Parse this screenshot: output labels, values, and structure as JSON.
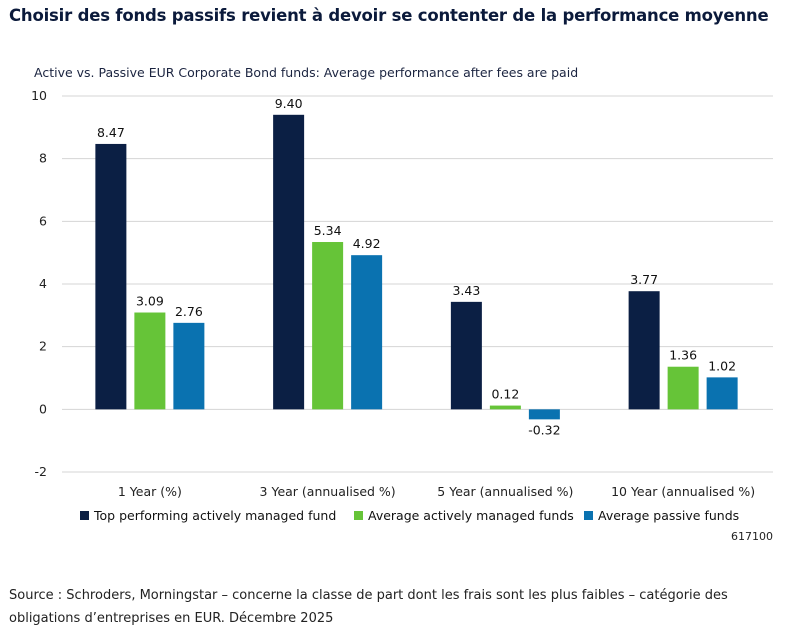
{
  "headline": "Choisir des fonds passifs revient à devoir se contenter de la performance moyenne",
  "code": "617100",
  "source": "Source : Schroders, Morningstar – concerne la classe de part dont les frais sont les plus faibles – catégorie des obligations d’entreprises en EUR. Décembre 2025",
  "chart_data": {
    "type": "bar",
    "title": "Active vs. Passive EUR Corporate Bond funds: Average performance after fees are paid",
    "categories": [
      "1 Year (%)",
      "3 Year (annualised %)",
      "5 Year (annualised %)",
      "10 Year (annualised %)"
    ],
    "series": [
      {
        "name": "Top performing actively managed fund",
        "color": "#0b1f44",
        "values": [
          8.47,
          9.4,
          3.43,
          3.77
        ],
        "labels": [
          "8.47",
          "9.40",
          "3.43",
          "3.77"
        ]
      },
      {
        "name": "Average actively managed funds",
        "color": "#66c438",
        "values": [
          3.09,
          5.34,
          0.12,
          1.36
        ],
        "labels": [
          "3.09",
          "5.34",
          "0.12",
          "1.36"
        ]
      },
      {
        "name": "Average passive funds",
        "color": "#0a72b0",
        "values": [
          2.76,
          4.92,
          -0.32,
          1.02
        ],
        "labels": [
          "2.76",
          "4.92",
          "-0.32",
          "1.02"
        ]
      }
    ],
    "ylim": [
      -2,
      10
    ],
    "yticks": [
      -2,
      0,
      2,
      4,
      6,
      8,
      10
    ],
    "grid": true,
    "legend_position": "bottom"
  }
}
